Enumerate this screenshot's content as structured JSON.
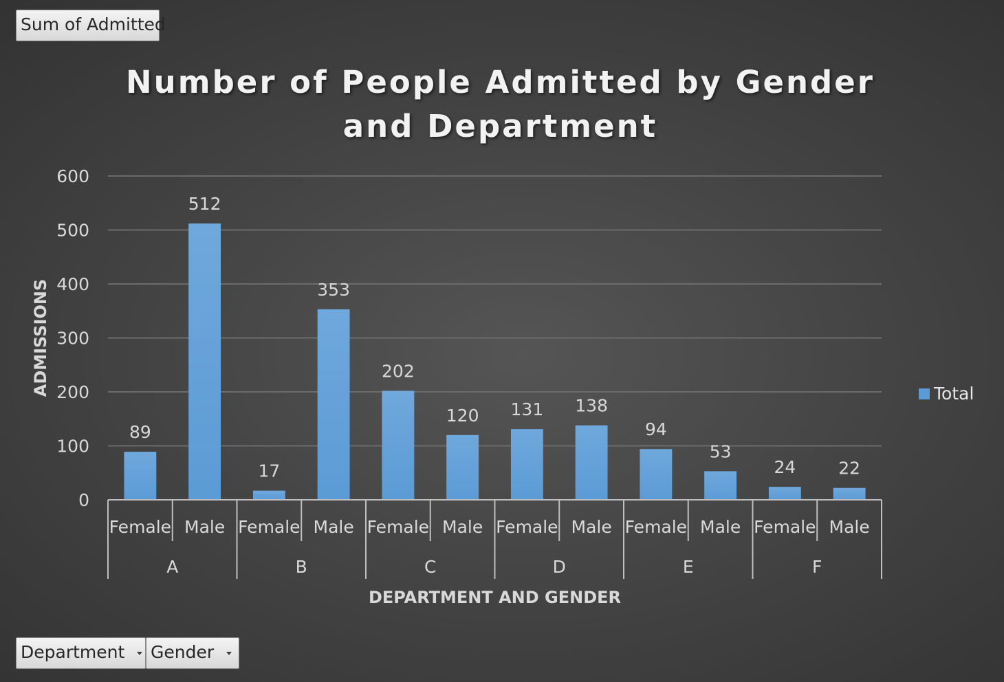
{
  "pivot_buttons": {
    "value_field": "Sum of Admitted",
    "row_fields": [
      {
        "label": "Department"
      },
      {
        "label": "Gender"
      }
    ]
  },
  "colors": {
    "bar": "#5b9bd5",
    "grid": "#6b6b6b",
    "axis_text": "#d9d9d9"
  },
  "chart_data": {
    "type": "bar",
    "title": "Number of People Admitted by Gender and Department",
    "xlabel": "DEPARTMENT AND GENDER",
    "ylabel": "ADMISSIONS",
    "ylim": [
      0,
      600
    ],
    "yticks": [
      0,
      100,
      200,
      300,
      400,
      500,
      600
    ],
    "groups": [
      {
        "name": "A",
        "categories": [
          "Female",
          "Male"
        ],
        "values": [
          89,
          512
        ]
      },
      {
        "name": "B",
        "categories": [
          "Female",
          "Male"
        ],
        "values": [
          17,
          353
        ]
      },
      {
        "name": "C",
        "categories": [
          "Female",
          "Male"
        ],
        "values": [
          202,
          120
        ]
      },
      {
        "name": "D",
        "categories": [
          "Female",
          "Male"
        ],
        "values": [
          131,
          138
        ]
      },
      {
        "name": "E",
        "categories": [
          "Female",
          "Male"
        ],
        "values": [
          94,
          53
        ]
      },
      {
        "name": "F",
        "categories": [
          "Female",
          "Male"
        ],
        "values": [
          24,
          22
        ]
      }
    ],
    "series": [
      {
        "name": "Total"
      }
    ],
    "grid": true,
    "legend": "right",
    "data_labels": true
  }
}
